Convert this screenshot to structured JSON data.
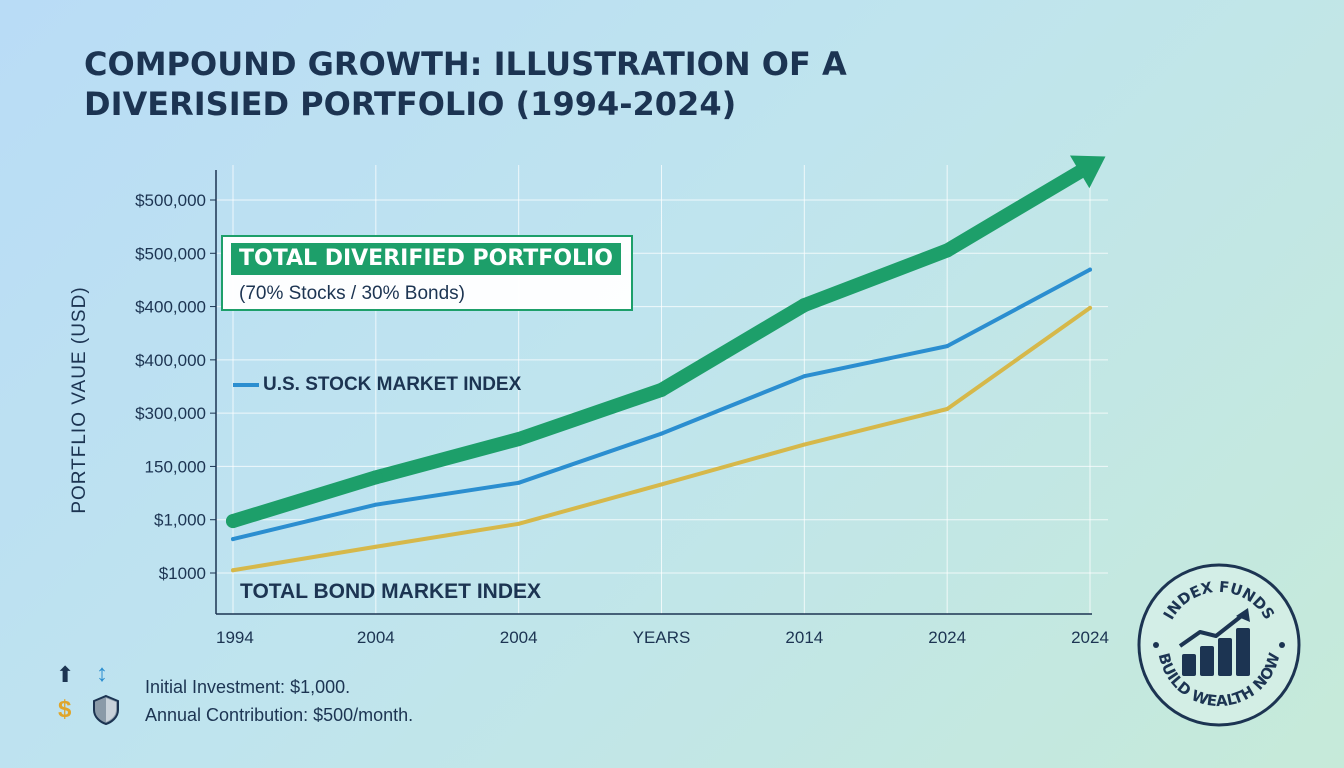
{
  "title": {
    "line1": "COMPOUND GROWTH: ILLUSTRATION OF A",
    "line2": "DIVERISIED PORTFOLIO (1994-2024)"
  },
  "chart_data": {
    "type": "line",
    "title": "COMPOUND GROWTH: ILLUSTRATION OF A DIVERISIED PORTFOLIO (1994-2024)",
    "ylabel": "PORTFLIO VAUE (USD)",
    "xlabel": "",
    "x_ticks": [
      "1994",
      "2004",
      "2004",
      "YEARS",
      "2014",
      "2024",
      "2024"
    ],
    "y_ticks": [
      "$500,000",
      "$500,000",
      "$400,000",
      "$400,000",
      "$300,000",
      "150,000",
      "$1,000",
      "$1000"
    ],
    "ylim": [
      0,
      7.5
    ],
    "grid": true,
    "series": [
      {
        "name": "TOTAL DIVERIFIED PORTFOLIO",
        "color": "#1d9f6a",
        "values": [
          0.95,
          1.75,
          2.45,
          3.35,
          4.9,
          5.9,
          7.45
        ],
        "arrow": true
      },
      {
        "name": "U.S. STOCK MARKET INDEX",
        "color": "#2b8ed0",
        "values": [
          0.62,
          1.25,
          1.65,
          2.55,
          3.6,
          4.15,
          5.55
        ]
      },
      {
        "name": "TOTAL BOND MARKET INDEX",
        "color": "#d6b84a",
        "values": [
          0.05,
          0.48,
          0.9,
          1.62,
          2.35,
          3.0,
          4.85
        ]
      }
    ]
  },
  "legend": {
    "portfolio_title": "TOTAL DIVERIFIED PORTFOLIO",
    "portfolio_sub": "(70% Stocks / 30% Bonds)",
    "stock": "U.S. STOCK MARKET INDEX",
    "bond": "TOTAL BOND MARKET INDEX"
  },
  "info": {
    "icons": {
      "up": "⬆",
      "updown": "↕",
      "dollar": "$"
    },
    "initial": "Initial Investment: $1,000.",
    "contribution": "Annual Contribution: $500/month."
  },
  "badge": {
    "top_text": "INDEX FUNDS",
    "bottom_text": "BUILD WEALTH NOW"
  },
  "colors": {
    "portfolio": "#1d9f6a",
    "stock": "#2b8ed0",
    "bond": "#d6b84a",
    "text": "#1c3452"
  }
}
